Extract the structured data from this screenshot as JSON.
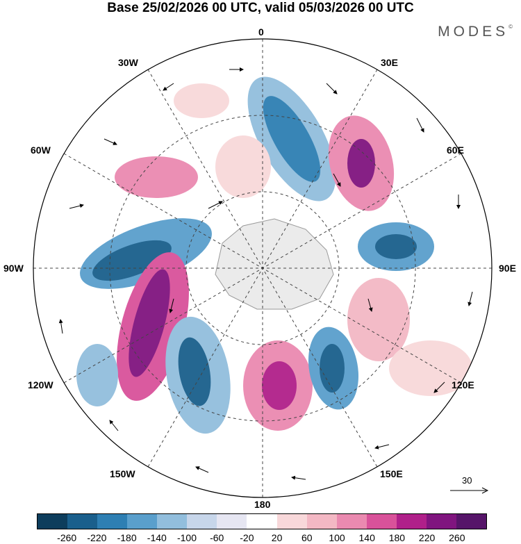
{
  "title": "Base 25/02/2026 00 UTC, valid 05/03/2026 00 UTC",
  "logo": "MODES",
  "logo_mark": "©",
  "map": {
    "projection": "South polar stereographic",
    "meridian_labels": {
      "m0": "0",
      "m30e": "30E",
      "m60e": "60E",
      "m90e": "90E",
      "m120e": "120E",
      "m150e": "150E",
      "m180": "180",
      "m150w": "150W",
      "m120w": "120W",
      "m90w": "90W",
      "m60w": "60W",
      "m30w": "30W"
    },
    "reference_vector": "30"
  },
  "colorbar": {
    "ticks": [
      "-260",
      "-220",
      "-180",
      "-140",
      "-100",
      "-60",
      "-20",
      "20",
      "60",
      "100",
      "140",
      "180",
      "220",
      "260"
    ],
    "colors": [
      "#0d3d5c",
      "#1a5f8c",
      "#2e7fb3",
      "#5a9fcc",
      "#92bedd",
      "#c7d6ea",
      "#e6e6f2",
      "#ffffff",
      "#f8d8da",
      "#f3b8c4",
      "#ea8ab0",
      "#d9529a",
      "#b0208a",
      "#80157f",
      "#561569"
    ]
  }
}
